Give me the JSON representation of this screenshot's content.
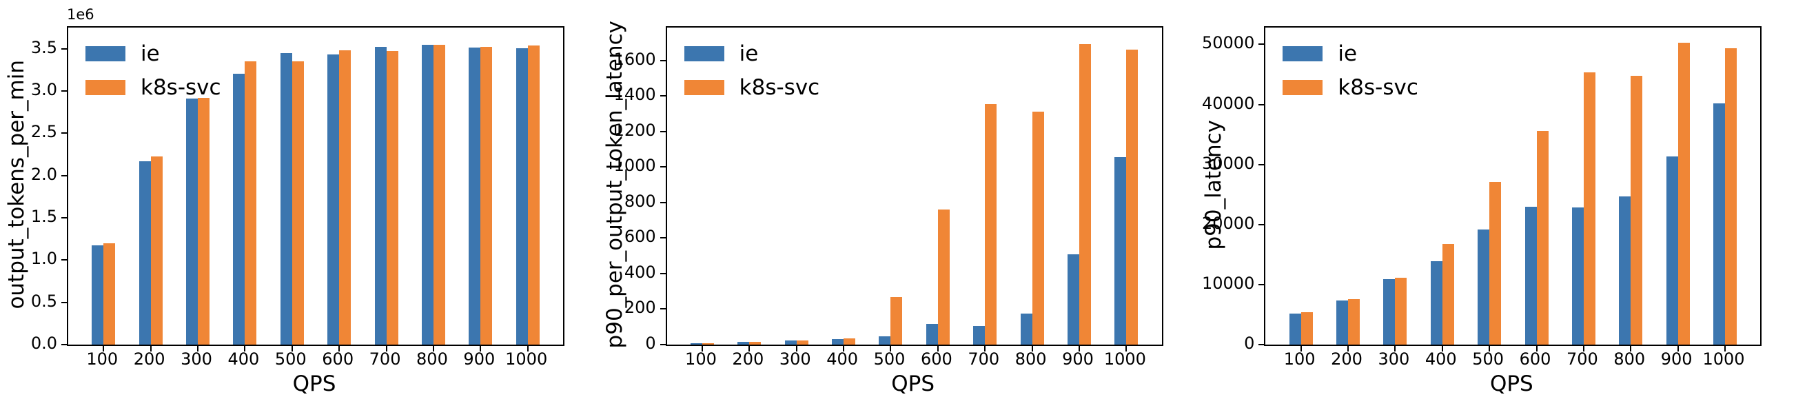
{
  "figure": {
    "background": "#ffffff",
    "axis_color": "#000000",
    "text_color": "#000000"
  },
  "chart_data": [
    {
      "type": "bar",
      "title": "",
      "xlabel": "QPS",
      "ylabel": "output_tokens_per_min",
      "y_offset_text": "1e6",
      "grid": false,
      "legend_position": "upper left",
      "categories": [
        "100",
        "200",
        "300",
        "400",
        "500",
        "600",
        "700",
        "800",
        "900",
        "1000"
      ],
      "series": [
        {
          "name": "ie",
          "color": "#3c76af",
          "values": [
            1170000,
            2170000,
            2910000,
            3200000,
            3450000,
            3430000,
            3520000,
            3545000,
            3510000,
            3505000
          ]
        },
        {
          "name": "k8s-svc",
          "color": "#f08636",
          "values": [
            1195000,
            2225000,
            2920000,
            3350000,
            3350000,
            3485000,
            3470000,
            3550000,
            3520000,
            3535000
          ]
        }
      ],
      "ylim": [
        0,
        3750000
      ],
      "yticks": [
        0,
        500000,
        1000000,
        1500000,
        2000000,
        2500000,
        3000000,
        3500000
      ],
      "ytick_labels": [
        "0.0",
        "0.5",
        "1.0",
        "1.5",
        "2.0",
        "2.5",
        "3.0",
        "3.5"
      ]
    },
    {
      "type": "bar",
      "title": "",
      "xlabel": "QPS",
      "ylabel": "p90_per_output_token_latency",
      "y_offset_text": "",
      "grid": false,
      "legend_position": "upper left",
      "categories": [
        "100",
        "200",
        "300",
        "400",
        "500",
        "600",
        "700",
        "800",
        "900",
        "1000"
      ],
      "series": [
        {
          "name": "ie",
          "color": "#3c76af",
          "values": [
            8,
            15,
            22,
            32,
            46,
            115,
            105,
            175,
            510,
            1055
          ]
        },
        {
          "name": "k8s-svc",
          "color": "#f08636",
          "values": [
            8,
            15,
            22,
            36,
            268,
            760,
            1355,
            1310,
            1690,
            1660
          ]
        }
      ],
      "ylim": [
        0,
        1785
      ],
      "yticks": [
        0,
        200,
        400,
        600,
        800,
        1000,
        1200,
        1400,
        1600
      ],
      "ytick_labels": [
        "0",
        "200",
        "400",
        "600",
        "800",
        "1000",
        "1200",
        "1400",
        "1600"
      ]
    },
    {
      "type": "bar",
      "title": "",
      "xlabel": "QPS",
      "ylabel": "p90_latency",
      "y_offset_text": "",
      "grid": false,
      "legend_position": "upper left",
      "categories": [
        "100",
        "200",
        "300",
        "400",
        "500",
        "600",
        "700",
        "800",
        "900",
        "1000"
      ],
      "series": [
        {
          "name": "ie",
          "color": "#3c76af",
          "values": [
            5200,
            7400,
            10900,
            13900,
            19200,
            23000,
            22800,
            24700,
            31300,
            40200
          ]
        },
        {
          "name": "k8s-svc",
          "color": "#f08636",
          "values": [
            5400,
            7600,
            11100,
            16800,
            27100,
            35600,
            45300,
            44800,
            50300,
            49400
          ]
        }
      ],
      "ylim": [
        0,
        52800
      ],
      "yticks": [
        0,
        10000,
        20000,
        30000,
        40000,
        50000
      ],
      "ytick_labels": [
        "0",
        "10000",
        "20000",
        "30000",
        "40000",
        "50000"
      ]
    }
  ]
}
